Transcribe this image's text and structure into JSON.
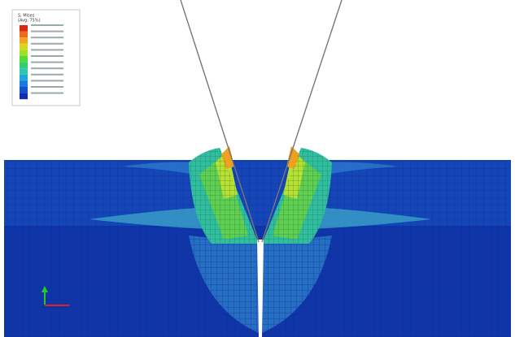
{
  "legend": {
    "title": "S, Mises",
    "subtitle": "(Avg: 75%)"
  }
}
